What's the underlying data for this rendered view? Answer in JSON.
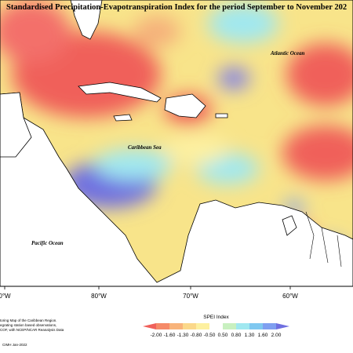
{
  "title": "Standardised Precipitation-Evapotranspiration Index for the period September to November 202",
  "labels": {
    "atlantic": "Atlantic Ocean",
    "caribbean": "Caribbean Sea",
    "pacific": "Pacific Ocean"
  },
  "longitudes": [
    "0°W",
    "80°W",
    "70°W",
    "60°W"
  ],
  "legend": {
    "title": "SPEI Index",
    "colors": [
      "#f0605a",
      "#f58a68",
      "#f8b37a",
      "#fbd88a",
      "#fdf0a0",
      "#ffffff",
      "#c8f0c0",
      "#a0e8f0",
      "#7fc8f0",
      "#7f9ff0",
      "#6f6fe0"
    ],
    "ticks": [
      "-2.00",
      "-1.60",
      "-1.30",
      "-0.80",
      "-0.50",
      "0.50",
      "0.80",
      "1.30",
      "1.60",
      "2.00"
    ]
  },
  "notes": [
    "toring Map of the Caribbean Region.",
    "egrating station based observations,",
    "COF, with NCEP/NCAR Reanalysis Data"
  ],
  "credit": "CIMH Jan-2022"
}
